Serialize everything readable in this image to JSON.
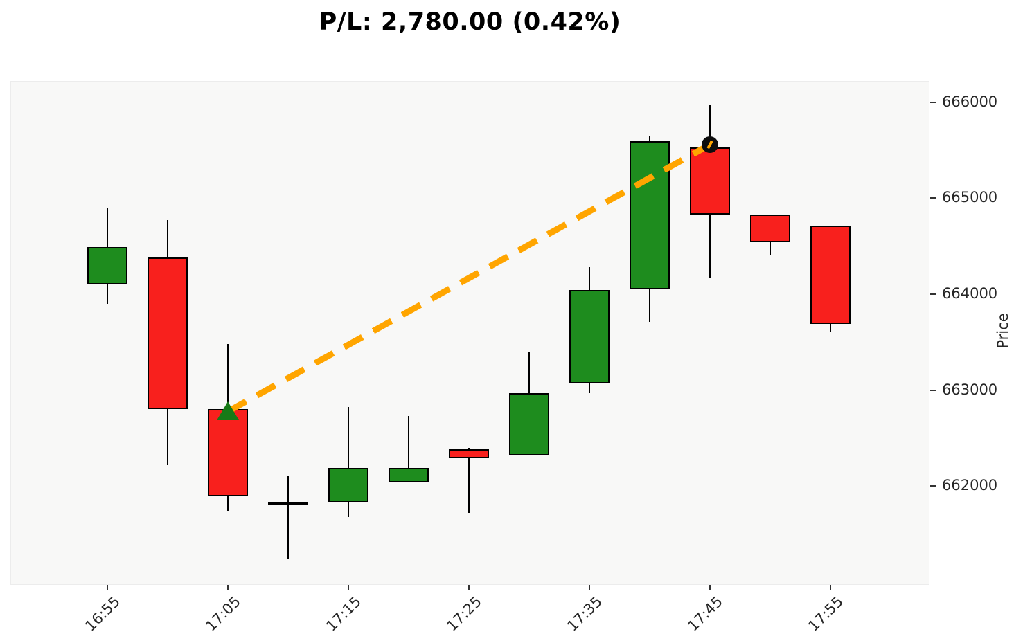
{
  "title": "P/L: 2,780.00 (0.42%)",
  "colors": {
    "up_candle": "#1e8c1e",
    "down_candle": "#f8201d",
    "wick": "#000000",
    "candle_edge": "#000000",
    "trade_line": "#ffa500",
    "buy_marker": "#177a17",
    "sell_marker": "#0d0d0d",
    "plot_background": "#f8f8f7",
    "page_background": "#ffffff",
    "tick_text": "#262626",
    "title_text": "#000000"
  },
  "chart_data": {
    "type": "candlestick",
    "title": "P/L: 2,780.00 (0.42%)",
    "ylabel": "Price",
    "xlabel": "",
    "grid": false,
    "legend": "none",
    "y_ticks": [
      666000,
      665000,
      664000,
      663000,
      662000
    ],
    "y_domain": [
      660970,
      666220
    ],
    "x_tick_labels": [
      "16:55",
      "17:05",
      "17:15",
      "17:25",
      "17:35",
      "17:45",
      "17:55"
    ],
    "x_tick_every_n_candles": 2,
    "candles": [
      {
        "time": "16:55",
        "open": 664100,
        "high": 664900,
        "low": 663900,
        "close": 664490
      },
      {
        "time": "17:00",
        "open": 664380,
        "high": 664770,
        "low": 662220,
        "close": 662800
      },
      {
        "time": "17:05",
        "open": 662800,
        "high": 663480,
        "low": 661740,
        "close": 661890
      },
      {
        "time": "17:10",
        "open": 661810,
        "high": 662110,
        "low": 661240,
        "close": 661830
      },
      {
        "time": "17:15",
        "open": 661830,
        "high": 662820,
        "low": 661680,
        "close": 662190
      },
      {
        "time": "17:20",
        "open": 662040,
        "high": 662730,
        "low": 662040,
        "close": 662190
      },
      {
        "time": "17:25",
        "open": 662380,
        "high": 662400,
        "low": 661720,
        "close": 662290
      },
      {
        "time": "17:30",
        "open": 662320,
        "high": 663400,
        "low": 662320,
        "close": 662970
      },
      {
        "time": "17:35",
        "open": 663070,
        "high": 664280,
        "low": 662970,
        "close": 664040
      },
      {
        "time": "17:40",
        "open": 664050,
        "high": 665650,
        "low": 663710,
        "close": 665590
      },
      {
        "time": "17:45",
        "open": 665530,
        "high": 665970,
        "low": 664170,
        "close": 664830
      },
      {
        "time": "17:50",
        "open": 664830,
        "high": 664830,
        "low": 664400,
        "close": 664540
      },
      {
        "time": "17:55",
        "open": 664710,
        "high": 664710,
        "low": 663600,
        "close": 663690
      }
    ],
    "trade": {
      "entry": {
        "time": "17:05",
        "price": 662780,
        "marker": "triangle-up"
      },
      "exit": {
        "time": "17:45",
        "price": 665560,
        "marker": "circle"
      },
      "line_style": "dashed"
    }
  }
}
